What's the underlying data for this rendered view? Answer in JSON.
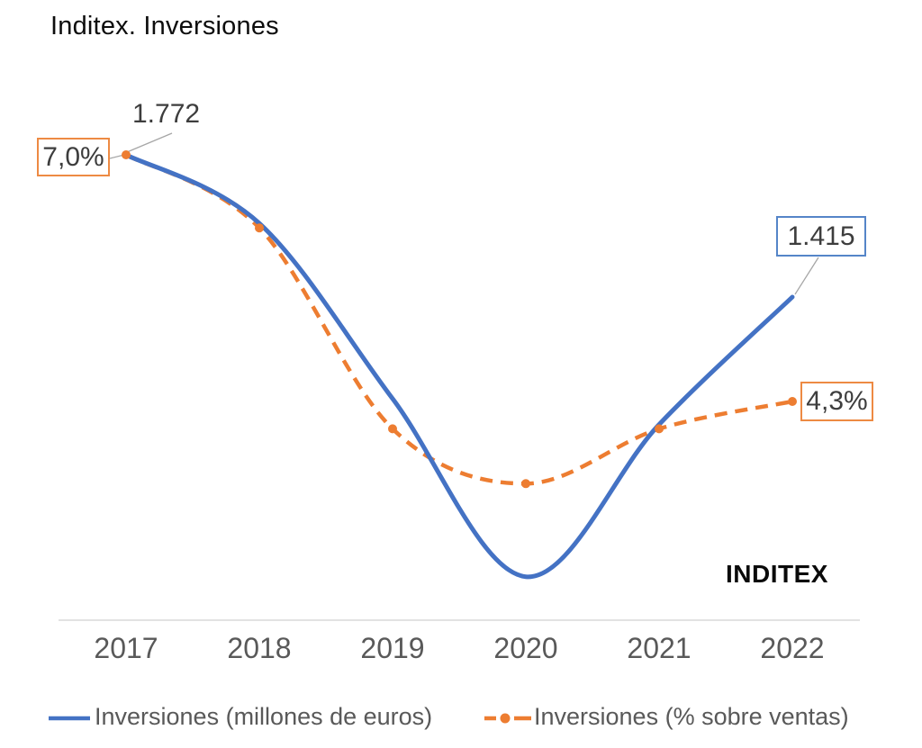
{
  "title": "Inditex. Inversiones",
  "watermark": "INDITEX",
  "annotations": {
    "start_value_label": "1.772",
    "start_pct_label": "7,0%",
    "end_value_label": "1.415",
    "end_pct_label": "4,3%"
  },
  "legend": [
    {
      "label": "Inversiones (millones de euros)"
    },
    {
      "label": "Inversiones (% sobre ventas)"
    }
  ],
  "colors": {
    "millions_line": "#4472C4",
    "percent_line": "#ED7D31",
    "axis_line": "#D9D9D9",
    "tick_text": "#595959",
    "annotation_text": "#3D3D3D",
    "leader_line": "#A6A6A6"
  },
  "chart_data": {
    "type": "line",
    "title": "Inditex. Inversiones",
    "x": [
      2017,
      2018,
      2019,
      2020,
      2021,
      2022
    ],
    "x_tick_labels": [
      "2017",
      "2018",
      "2019",
      "2020",
      "2021",
      "2022"
    ],
    "series": [
      {
        "name": "Inversiones (millones de euros)",
        "unit": "millones de euros",
        "line_style": "solid",
        "color": "#4472C4",
        "markers": false,
        "values": [
          1772,
          1600,
          1160,
          713,
          1095,
          1415
        ],
        "point_labels": {
          "2017": "1.772",
          "2022": "1.415"
        }
      },
      {
        "name": "Inversiones (% sobre ventas)",
        "unit": "%",
        "line_style": "dashed",
        "color": "#ED7D31",
        "markers": true,
        "values": [
          7.0,
          6.2,
          4.0,
          3.4,
          4.0,
          4.3
        ],
        "point_labels": {
          "2017": "7,0%",
          "2022": "4,3%"
        }
      }
    ],
    "axes": {
      "y_axis_visible": false,
      "gridlines": false,
      "baseline_visible": true
    },
    "legend_position": "bottom"
  }
}
